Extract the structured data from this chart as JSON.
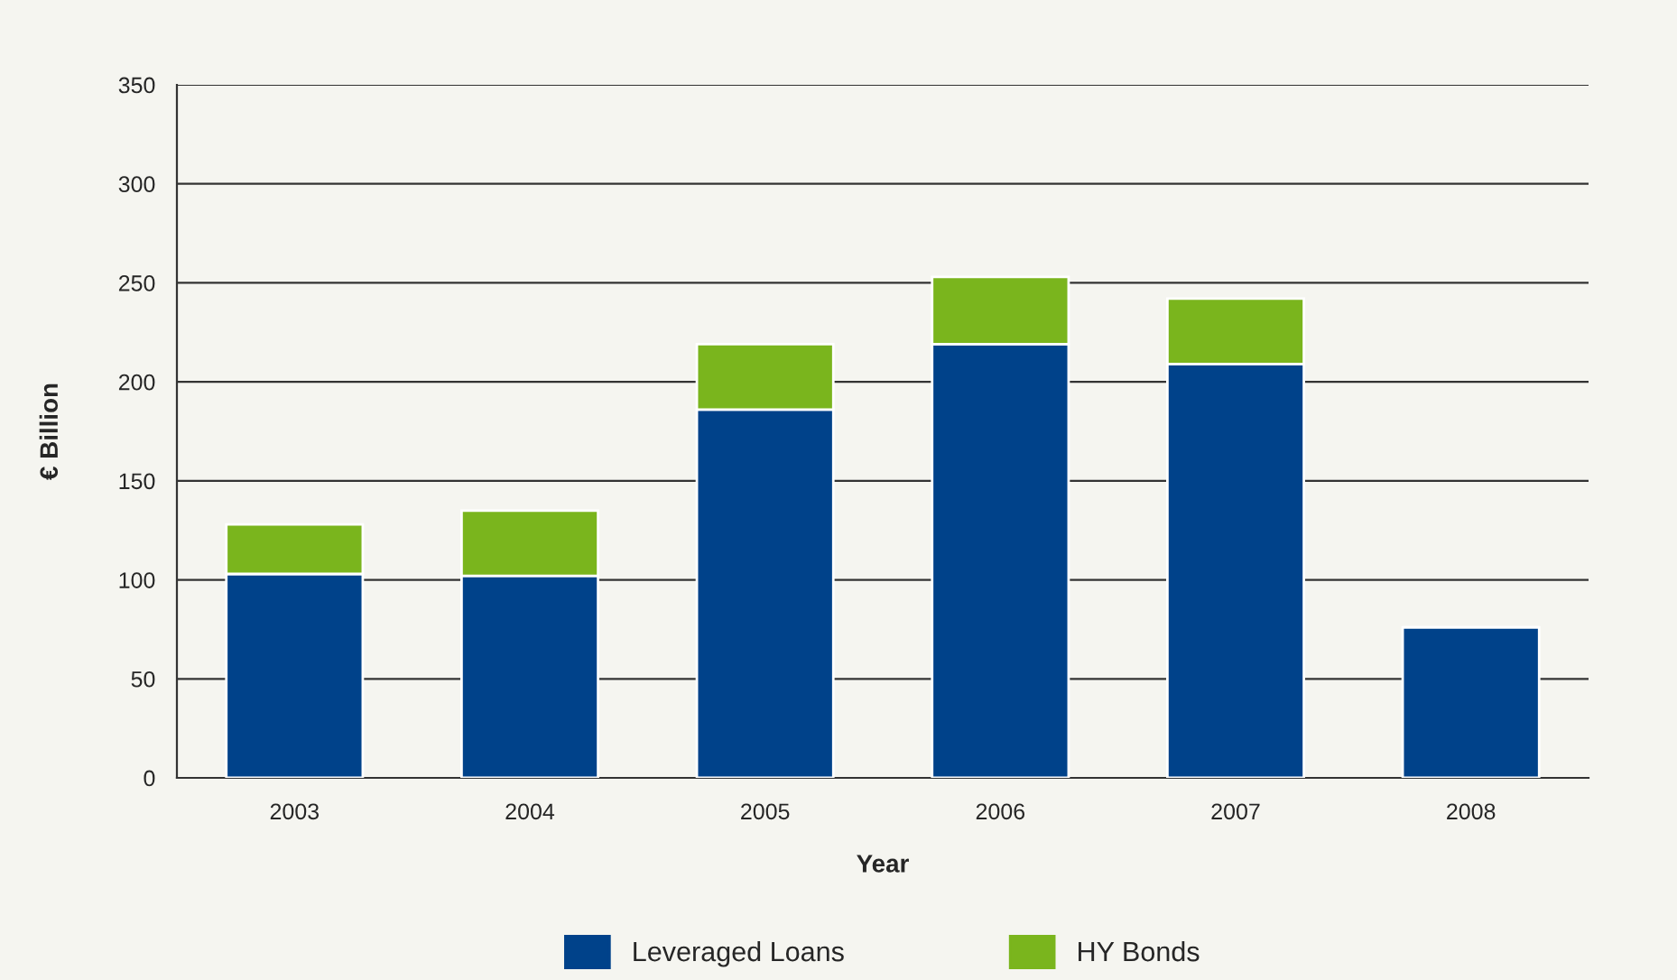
{
  "chart_data": {
    "type": "bar",
    "stacked": true,
    "xlabel": "Year",
    "ylabel": "€ Billion",
    "categories": [
      "2003",
      "2004",
      "2005",
      "2006",
      "2007",
      "2008"
    ],
    "series": [
      {
        "name": "Leveraged Loans",
        "color": "#00428a",
        "values": [
          103,
          102,
          186,
          219,
          209,
          76
        ]
      },
      {
        "name": "HY Bonds",
        "color": "#7ab51d",
        "values": [
          25,
          33,
          33,
          34,
          33,
          null
        ]
      }
    ],
    "ylim": [
      0,
      350
    ],
    "yticks": [
      0,
      50,
      100,
      150,
      200,
      250,
      300,
      350
    ],
    "grid": "y",
    "legend": "bottom"
  }
}
